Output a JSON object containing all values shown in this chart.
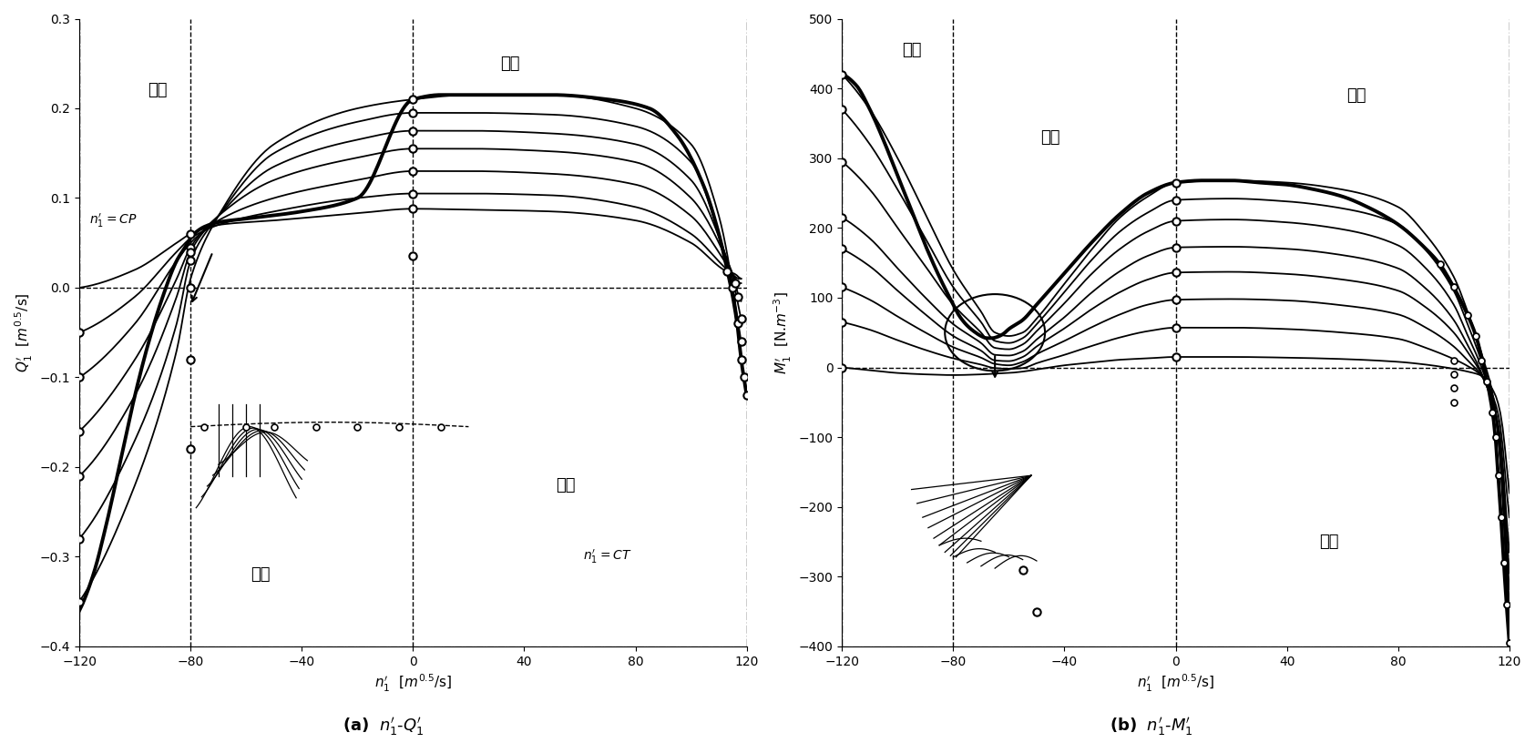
{
  "fig_width": 16.85,
  "fig_height": 8.27,
  "title_a": "(a)   $n_1^{\\prime}$-$Q_1^{\\prime}$",
  "title_b": "(b)   $n_1^{\\prime}$-$M_1^{\\prime}$",
  "ax_a": {
    "xlim": [
      -120,
      120
    ],
    "ylim": [
      -0.4,
      0.3
    ],
    "xlabel": "$n_1^{\\prime}$  [$m^{0.5}$/s]",
    "ylabel": "$Q_1^{\\prime}$  [$m^{0.5}$/s]",
    "xticks": [
      -120,
      -80,
      -40,
      0,
      40,
      80,
      120
    ],
    "yticks": [
      -0.4,
      -0.3,
      -0.2,
      -0.1,
      0.0,
      0.1,
      0.2,
      0.3
    ]
  },
  "ax_b": {
    "xlim": [
      -120,
      120
    ],
    "ylim": [
      -400,
      500
    ],
    "xlabel": "$n_1^{\\prime}$  [$m^{0.5}$/s]",
    "ylabel": "$M_1^{\\prime}$  [N.$m^{-3}$]",
    "xticks": [
      -120,
      -80,
      -40,
      0,
      40,
      80,
      120
    ],
    "yticks": [
      -400,
      -300,
      -200,
      -100,
      0,
      100,
      200,
      300,
      400,
      500
    ]
  }
}
